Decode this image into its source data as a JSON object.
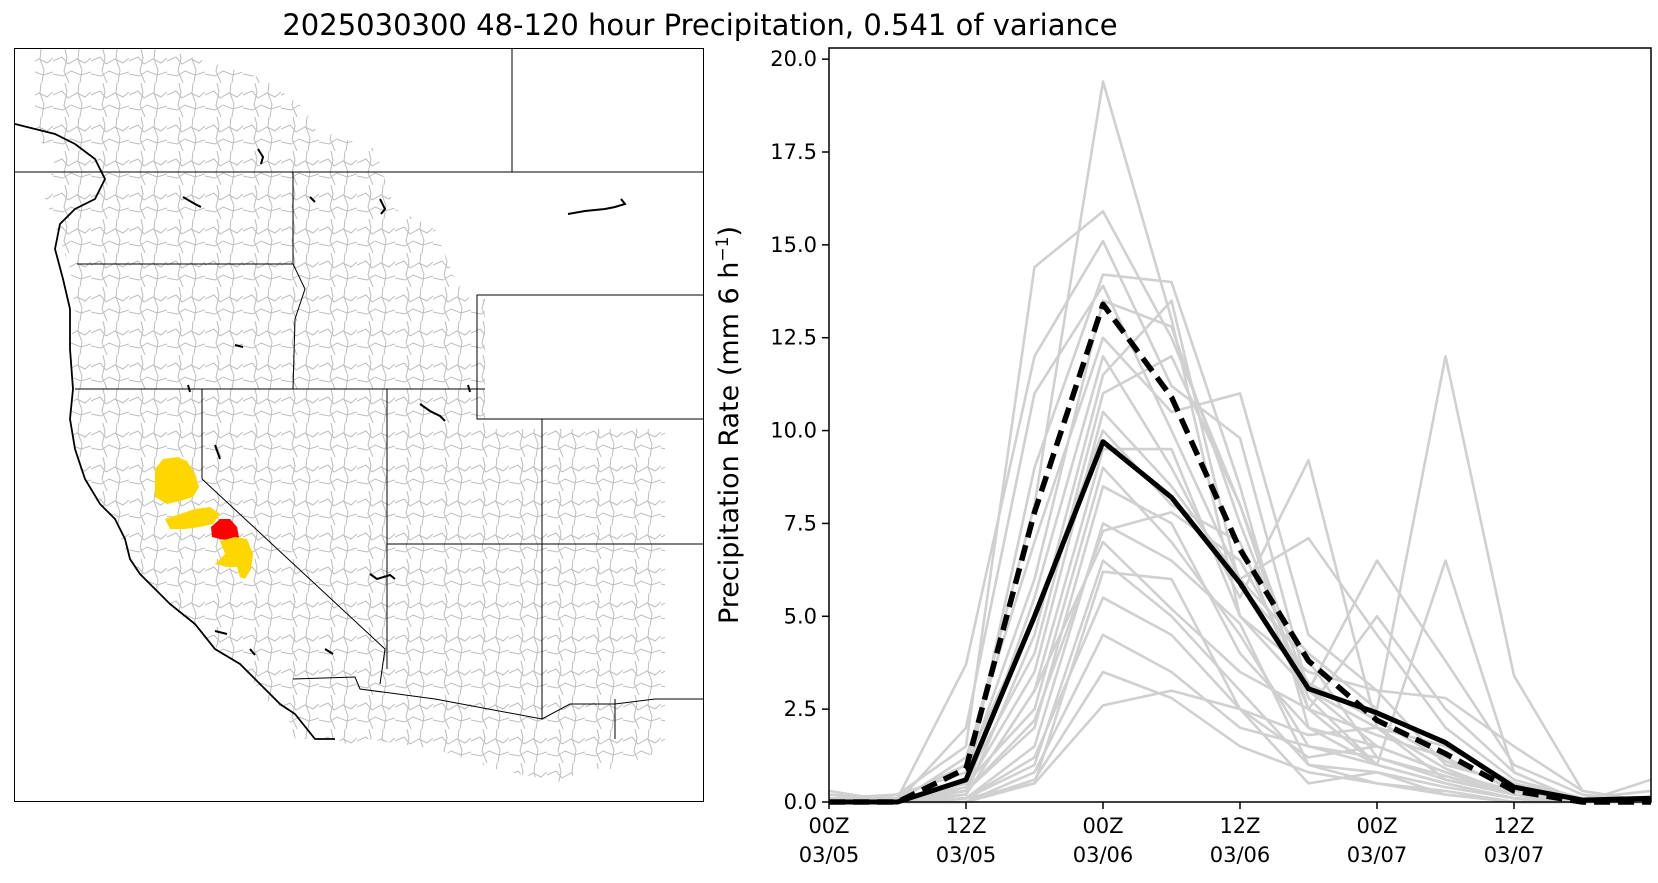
{
  "title": "2025030300 48-120 hour Precipitation, 0.541 of variance",
  "colors": {
    "member_line": "#d0d0d0",
    "mean_line": "#000000",
    "highlight_basin_yellow": "#ffd700",
    "highlight_basin_red": "#ff0000",
    "basin_outline": "#bbbbbb",
    "state_border": "#000000"
  },
  "map": {
    "type": "basin-map",
    "region": "Western United States",
    "highlighted_basins": [
      {
        "color": "yellow",
        "count": 4
      },
      {
        "color": "red",
        "count": 1
      }
    ]
  },
  "chart_data": {
    "type": "line",
    "ylabel": "Precipitation Rate (mm 6 h⁻¹)",
    "ylabel_base": "Precipitation Rate (mm 6 h",
    "ylabel_sup": "−1",
    "ylabel_end": ")",
    "ylim": [
      0,
      20.3
    ],
    "xlim": [
      0,
      12
    ],
    "yticks": [
      0.0,
      2.5,
      5.0,
      7.5,
      10.0,
      12.5,
      15.0,
      17.5,
      20.0
    ],
    "ytick_labels": [
      "0.0",
      "2.5",
      "5.0",
      "7.5",
      "10.0",
      "12.5",
      "15.0",
      "17.5",
      "20.0"
    ],
    "xticks": [
      0,
      2,
      4,
      6,
      8,
      10
    ],
    "xtick_labels": [
      [
        "00Z",
        "03/05"
      ],
      [
        "12Z",
        "03/05"
      ],
      [
        "00Z",
        "03/06"
      ],
      [
        "12Z",
        "03/06"
      ],
      [
        "00Z",
        "03/07"
      ],
      [
        "12Z",
        "03/07"
      ]
    ],
    "grid": false,
    "x": [
      0,
      1,
      2,
      3,
      4,
      5,
      6,
      7,
      8,
      9,
      10,
      11,
      12
    ],
    "members": [
      [
        0.2,
        0.1,
        1.0,
        8.0,
        19.4,
        13.0,
        5.0,
        3.0,
        2.0,
        1.5,
        0.5,
        0.1,
        0.3
      ],
      [
        0.1,
        0.2,
        1.5,
        14.4,
        15.9,
        12.5,
        8.0,
        2.5,
        1.8,
        1.2,
        0.3,
        0.1,
        0.0
      ],
      [
        0.0,
        0.1,
        3.7,
        12.0,
        15.1,
        11.2,
        9.8,
        3.0,
        1.5,
        0.8,
        0.2,
        0.0,
        0.0
      ],
      [
        0.3,
        0.0,
        0.5,
        9.0,
        14.2,
        14.0,
        8.5,
        2.0,
        1.0,
        0.5,
        0.1,
        0.0,
        0.6
      ],
      [
        0.0,
        0.0,
        2.0,
        11.0,
        13.9,
        10.0,
        6.0,
        4.0,
        2.5,
        12.0,
        3.4,
        0.3,
        0.0
      ],
      [
        0.0,
        0.2,
        0.8,
        6.0,
        13.5,
        12.8,
        7.5,
        2.8,
        1.0,
        6.5,
        0.8,
        0.0,
        0.0
      ],
      [
        0.1,
        0.0,
        1.2,
        7.0,
        12.5,
        10.5,
        11.0,
        4.5,
        3.0,
        1.0,
        0.5,
        0.0,
        0.0
      ],
      [
        0.0,
        0.1,
        0.3,
        5.5,
        12.0,
        9.0,
        5.5,
        9.2,
        2.0,
        0.6,
        0.2,
        0.0,
        0.0
      ],
      [
        0.0,
        0.0,
        0.6,
        4.0,
        11.0,
        12.0,
        8.0,
        3.0,
        6.5,
        3.8,
        1.0,
        0.2,
        0.0
      ],
      [
        0.0,
        0.0,
        0.4,
        3.5,
        10.5,
        8.5,
        6.0,
        7.1,
        4.5,
        2.0,
        0.6,
        0.1,
        0.0
      ],
      [
        0.0,
        0.1,
        1.0,
        5.0,
        10.0,
        8.0,
        7.0,
        2.5,
        5.0,
        2.5,
        0.8,
        0.0,
        0.0
      ],
      [
        0.0,
        0.0,
        0.2,
        3.0,
        9.5,
        9.5,
        5.0,
        3.5,
        3.0,
        2.8,
        1.5,
        0.3,
        0.0
      ],
      [
        0.0,
        0.0,
        0.5,
        2.5,
        9.0,
        7.0,
        4.5,
        1.5,
        1.2,
        0.6,
        0.2,
        0.0,
        0.0
      ],
      [
        0.0,
        0.0,
        0.3,
        2.0,
        8.5,
        7.5,
        4.0,
        2.0,
        1.5,
        0.8,
        0.2,
        0.0,
        0.0
      ],
      [
        0.0,
        0.0,
        0.1,
        1.5,
        7.5,
        6.5,
        4.8,
        1.0,
        0.8,
        0.4,
        0.1,
        0.0,
        0.0
      ],
      [
        0.0,
        0.0,
        0.2,
        3.0,
        7.0,
        5.2,
        3.5,
        2.5,
        1.0,
        0.5,
        0.1,
        0.0,
        0.0
      ],
      [
        0.0,
        0.0,
        0.1,
        1.0,
        6.5,
        5.0,
        3.0,
        1.0,
        0.5,
        0.3,
        0.0,
        0.0,
        0.0
      ],
      [
        0.0,
        0.0,
        0.0,
        0.5,
        6.2,
        6.0,
        2.5,
        1.8,
        2.0,
        0.9,
        0.2,
        0.0,
        0.0
      ],
      [
        0.0,
        0.0,
        0.1,
        1.2,
        5.5,
        4.5,
        2.5,
        0.5,
        0.8,
        0.2,
        0.0,
        0.0,
        0.0
      ],
      [
        0.0,
        0.0,
        0.0,
        0.8,
        4.5,
        3.5,
        2.0,
        1.5,
        1.0,
        0.5,
        0.1,
        0.0,
        0.0
      ],
      [
        0.0,
        0.0,
        0.0,
        0.6,
        3.5,
        2.8,
        1.5,
        0.8,
        0.5,
        0.2,
        0.0,
        0.0,
        0.0
      ],
      [
        0.0,
        0.0,
        0.1,
        0.5,
        2.6,
        3.0,
        2.5,
        1.2,
        1.5,
        0.8,
        0.3,
        0.0,
        0.0
      ],
      [
        0.0,
        0.0,
        0.3,
        2.2,
        7.3,
        7.8,
        6.5,
        3.2,
        2.2,
        1.1,
        0.4,
        0.0,
        0.0
      ],
      [
        0.0,
        0.0,
        0.2,
        4.5,
        11.5,
        13.5,
        5.8,
        3.8,
        1.2,
        0.7,
        0.2,
        0.0,
        0.0
      ]
    ],
    "mean_solid": [
      0.0,
      0.0,
      0.6,
      5.0,
      9.7,
      8.2,
      5.9,
      3.05,
      2.4,
      1.6,
      0.4,
      0.05,
      0.1
    ],
    "mean_dashed": [
      0.0,
      0.0,
      0.9,
      7.8,
      13.4,
      10.9,
      6.8,
      3.8,
      2.2,
      1.3,
      0.3,
      0.0,
      0.0
    ]
  }
}
